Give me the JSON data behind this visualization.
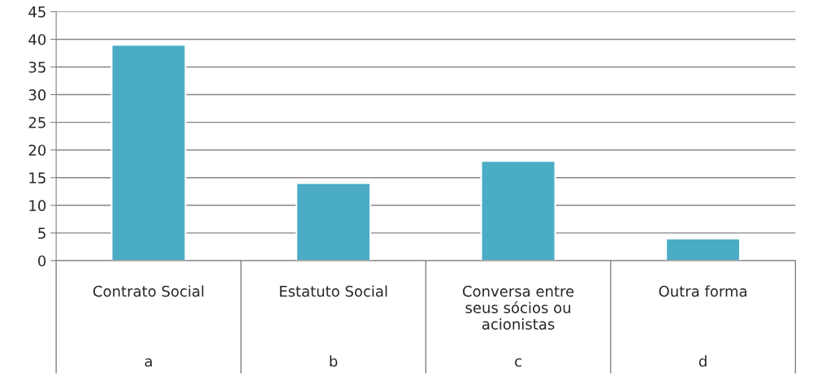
{
  "chart_data": {
    "type": "bar",
    "categories": [
      "Contrato Social",
      "Estatuto Social",
      "Conversa entre\nseus sócios ou\nacionistas",
      "Outra forma"
    ],
    "values": [
      39,
      14,
      18,
      4
    ],
    "color": "#4bacc6",
    "ylim": [
      0,
      45
    ],
    "yticks": [
      0,
      5,
      10,
      15,
      20,
      25,
      30,
      35,
      40,
      45
    ],
    "grid": "y",
    "legend": false,
    "annotations": [
      "a",
      "b",
      "c",
      "d"
    ]
  }
}
